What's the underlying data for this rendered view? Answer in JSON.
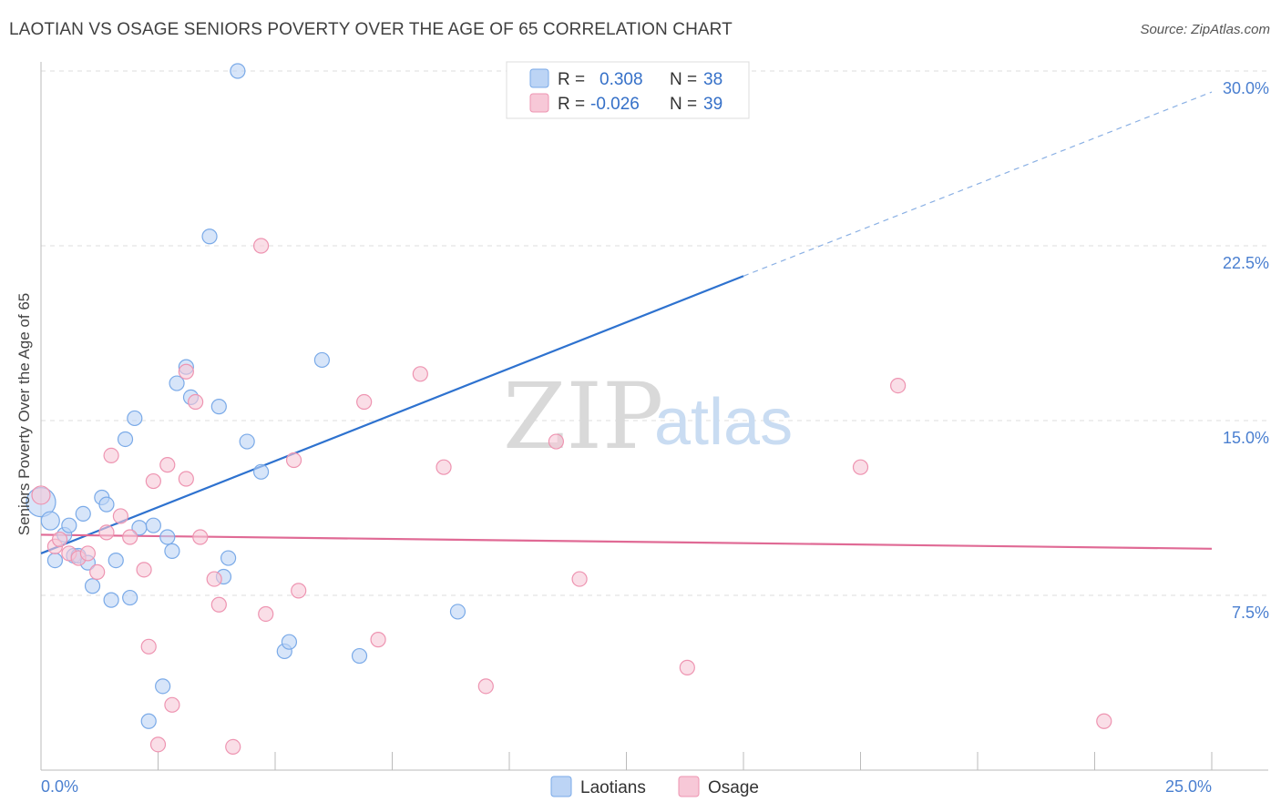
{
  "chart_data": {
    "type": "scatter",
    "title": "LAOTIAN VS OSAGE SENIORS POVERTY OVER THE AGE OF 65 CORRELATION CHART",
    "source": "Source: ZipAtlas.com",
    "ylabel": "Seniors Poverty Over the Age of 65",
    "xlabel": "",
    "xlim": [
      0,
      25
    ],
    "ylim": [
      0,
      30
    ],
    "x_tick_labels": [
      {
        "value": 0,
        "label": "0.0%"
      },
      {
        "value": 25,
        "label": "25.0%"
      }
    ],
    "y_tick_labels": [
      {
        "value": 7.5,
        "label": "7.5%"
      },
      {
        "value": 15,
        "label": "15.0%"
      },
      {
        "value": 22.5,
        "label": "22.5%"
      },
      {
        "value": 30,
        "label": "30.0%"
      }
    ],
    "watermark": {
      "zip": "ZIP",
      "atlas": "atlas"
    },
    "legend": {
      "r_label": "R =",
      "n_label": "N =",
      "entries": [
        {
          "name": "Laotians",
          "r": "0.308",
          "n": "38",
          "color": "#7aaae8",
          "fill": "#bcd4f5"
        },
        {
          "name": "Osage",
          "r": "-0.026",
          "n": "39",
          "color": "#ee94b1",
          "fill": "#f7c8d7"
        }
      ]
    },
    "series": [
      {
        "name": "Laotians",
        "color": "#7aaae8",
        "fill": "#bcd4f5",
        "trend": {
          "x0": 0,
          "y0": 9.3,
          "x1": 15,
          "y1": 21.2,
          "x_end": 25,
          "y_end": 29.1
        },
        "points": [
          [
            0.0,
            11.5,
            16
          ],
          [
            0.2,
            10.7,
            10
          ],
          [
            0.3,
            9.0,
            8
          ],
          [
            0.5,
            10.1,
            8
          ],
          [
            0.6,
            10.5,
            8
          ],
          [
            0.7,
            9.2,
            8
          ],
          [
            0.8,
            9.2,
            8
          ],
          [
            0.9,
            11.0,
            8
          ],
          [
            1.0,
            8.9,
            8
          ],
          [
            1.1,
            7.9,
            8
          ],
          [
            1.3,
            11.7,
            8
          ],
          [
            1.4,
            11.4,
            8
          ],
          [
            1.5,
            7.3,
            8
          ],
          [
            1.6,
            9.0,
            8
          ],
          [
            1.8,
            14.2,
            8
          ],
          [
            1.9,
            7.4,
            8
          ],
          [
            2.0,
            15.1,
            8
          ],
          [
            2.1,
            10.4,
            8
          ],
          [
            2.3,
            2.1,
            8
          ],
          [
            2.4,
            10.5,
            8
          ],
          [
            2.6,
            3.6,
            8
          ],
          [
            2.7,
            10.0,
            8
          ],
          [
            2.8,
            9.4,
            8
          ],
          [
            2.9,
            16.6,
            8
          ],
          [
            3.1,
            17.3,
            8
          ],
          [
            3.2,
            16.0,
            8
          ],
          [
            3.6,
            22.9,
            8
          ],
          [
            3.8,
            15.6,
            8
          ],
          [
            3.9,
            8.3,
            8
          ],
          [
            4.0,
            9.1,
            8
          ],
          [
            4.2,
            30.0,
            8
          ],
          [
            4.4,
            14.1,
            8
          ],
          [
            4.7,
            12.8,
            8
          ],
          [
            5.2,
            5.1,
            8
          ],
          [
            5.3,
            5.5,
            8
          ],
          [
            6.0,
            17.6,
            8
          ],
          [
            6.8,
            4.9,
            8
          ],
          [
            8.9,
            6.8,
            8
          ]
        ]
      },
      {
        "name": "Osage",
        "color": "#ee94b1",
        "fill": "#f7c8d7",
        "trend": {
          "x0": 0,
          "y0": 10.1,
          "x1": 25,
          "y1": 9.5
        },
        "points": [
          [
            0.0,
            11.8,
            10
          ],
          [
            0.3,
            9.6,
            8
          ],
          [
            0.4,
            9.9,
            8
          ],
          [
            0.6,
            9.3,
            8
          ],
          [
            0.8,
            9.1,
            8
          ],
          [
            1.0,
            9.3,
            8
          ],
          [
            1.2,
            8.5,
            8
          ],
          [
            1.4,
            10.2,
            8
          ],
          [
            1.5,
            13.5,
            8
          ],
          [
            1.7,
            10.9,
            8
          ],
          [
            1.9,
            10.0,
            8
          ],
          [
            2.2,
            8.6,
            8
          ],
          [
            2.3,
            5.3,
            8
          ],
          [
            2.4,
            12.4,
            8
          ],
          [
            2.5,
            1.1,
            8
          ],
          [
            2.7,
            13.1,
            8
          ],
          [
            2.8,
            2.8,
            8
          ],
          [
            3.1,
            17.1,
            8
          ],
          [
            3.1,
            12.5,
            8
          ],
          [
            3.3,
            15.8,
            8
          ],
          [
            3.4,
            10.0,
            8
          ],
          [
            3.7,
            8.2,
            8
          ],
          [
            3.8,
            7.1,
            8
          ],
          [
            4.1,
            1.0,
            8
          ],
          [
            4.7,
            22.5,
            8
          ],
          [
            4.8,
            6.7,
            8
          ],
          [
            5.4,
            13.3,
            8
          ],
          [
            5.5,
            7.7,
            8
          ],
          [
            6.9,
            15.8,
            8
          ],
          [
            7.2,
            5.6,
            8
          ],
          [
            8.1,
            17.0,
            8
          ],
          [
            8.6,
            13.0,
            8
          ],
          [
            9.5,
            3.6,
            8
          ],
          [
            11.0,
            14.1,
            8
          ],
          [
            11.5,
            8.2,
            8
          ],
          [
            13.8,
            4.4,
            8
          ],
          [
            17.5,
            13.0,
            8
          ],
          [
            18.3,
            16.5,
            8
          ],
          [
            22.7,
            2.1,
            8
          ]
        ]
      }
    ]
  }
}
